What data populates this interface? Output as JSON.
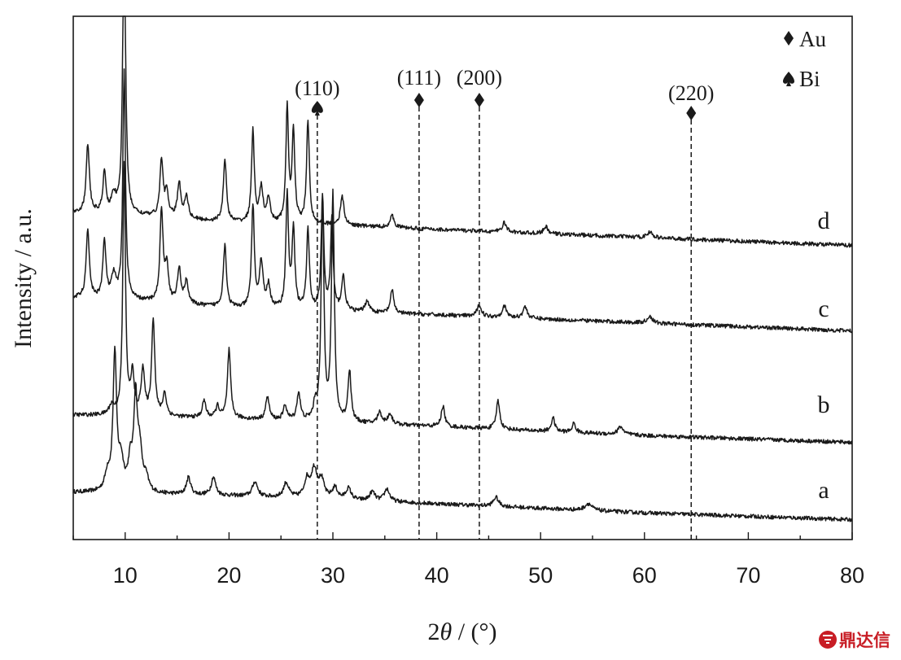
{
  "chart_data": {
    "type": "line",
    "title": "",
    "xlabel_prefix": "2",
    "xlabel_symbol": "θ",
    "xlabel_suffix": " / (°)",
    "ylabel": "Intensity / a.u.",
    "xlim": [
      5,
      80
    ],
    "xticks": [
      10,
      20,
      30,
      40,
      50,
      60,
      70,
      80
    ],
    "yticks_shown": false,
    "grid": false,
    "series": [
      {
        "name": "a",
        "baseline": [
          [
            5,
            0.0
          ],
          [
            20,
            -0.3
          ],
          [
            40,
            -1.0
          ],
          [
            60,
            -1.8
          ],
          [
            80,
            -2.4
          ]
        ],
        "peaks": [
          [
            8.3,
            1.5,
            0.3
          ],
          [
            9.0,
            12.0,
            0.2
          ],
          [
            9.6,
            2.5,
            0.3
          ],
          [
            10.5,
            2.5,
            0.25
          ],
          [
            11.0,
            8.0,
            0.2
          ],
          [
            11.4,
            3.5,
            0.25
          ],
          [
            12.0,
            1.2,
            0.3
          ],
          [
            16.1,
            1.5,
            0.25
          ],
          [
            18.5,
            1.6,
            0.25
          ],
          [
            22.5,
            1.3,
            0.3
          ],
          [
            25.5,
            1.3,
            0.3
          ],
          [
            27.5,
            1.5,
            0.3
          ],
          [
            28.2,
            2.5,
            0.35
          ],
          [
            28.9,
            1.5,
            0.3
          ],
          [
            30.2,
            1.0,
            0.3
          ],
          [
            31.5,
            1.0,
            0.3
          ],
          [
            33.8,
            0.8,
            0.3
          ],
          [
            35.2,
            1.1,
            0.3
          ],
          [
            45.7,
            0.8,
            0.3
          ],
          [
            54.6,
            0.6,
            0.4
          ]
        ]
      },
      {
        "name": "b",
        "baseline": [
          [
            5,
            0.0
          ],
          [
            20,
            -0.3
          ],
          [
            40,
            -1.0
          ],
          [
            60,
            -1.8
          ],
          [
            80,
            -2.4
          ]
        ],
        "peaks": [
          [
            8.7,
            0.8,
            0.3
          ],
          [
            9.9,
            22.0,
            0.15
          ],
          [
            10.7,
            3.5,
            0.2
          ],
          [
            11.7,
            4.0,
            0.2
          ],
          [
            12.7,
            8.5,
            0.18
          ],
          [
            13.8,
            2.0,
            0.2
          ],
          [
            17.6,
            1.5,
            0.2
          ],
          [
            18.9,
            1.0,
            0.2
          ],
          [
            20.0,
            6.0,
            0.18
          ],
          [
            23.7,
            2.0,
            0.2
          ],
          [
            25.4,
            1.3,
            0.2
          ],
          [
            26.7,
            2.4,
            0.2
          ],
          [
            28.3,
            1.3,
            0.2
          ],
          [
            29.0,
            19.0,
            0.16
          ],
          [
            30.0,
            20.0,
            0.16
          ],
          [
            31.6,
            4.5,
            0.18
          ],
          [
            34.5,
            1.0,
            0.25
          ],
          [
            35.5,
            0.9,
            0.25
          ],
          [
            40.6,
            1.8,
            0.2
          ],
          [
            45.9,
            2.5,
            0.2
          ],
          [
            51.2,
            1.2,
            0.2
          ],
          [
            53.2,
            0.8,
            0.2
          ],
          [
            57.7,
            0.7,
            0.3
          ]
        ]
      },
      {
        "name": "c",
        "baseline": [
          [
            5,
            0.5
          ],
          [
            10,
            0.3
          ],
          [
            20,
            -0.4
          ],
          [
            30,
            -0.7
          ],
          [
            40,
            -1.0
          ],
          [
            60,
            -1.7
          ],
          [
            80,
            -2.4
          ]
        ],
        "peaks": [
          [
            6.4,
            6.0,
            0.18
          ],
          [
            8.0,
            5.0,
            0.18
          ],
          [
            8.9,
            2.0,
            0.25
          ],
          [
            9.9,
            20.0,
            0.15
          ],
          [
            13.5,
            8.0,
            0.18
          ],
          [
            14.0,
            3.0,
            0.2
          ],
          [
            15.2,
            3.0,
            0.2
          ],
          [
            15.9,
            2.0,
            0.2
          ],
          [
            19.6,
            5.5,
            0.18
          ],
          [
            22.3,
            9.0,
            0.16
          ],
          [
            23.1,
            4.0,
            0.2
          ],
          [
            23.8,
            2.0,
            0.2
          ],
          [
            25.6,
            10.0,
            0.15
          ],
          [
            26.2,
            7.0,
            0.16
          ],
          [
            27.6,
            7.0,
            0.16
          ],
          [
            29.0,
            10.0,
            0.15
          ],
          [
            29.9,
            8.0,
            0.15
          ],
          [
            31.0,
            3.0,
            0.2
          ],
          [
            33.3,
            1.0,
            0.25
          ],
          [
            35.7,
            2.0,
            0.2
          ],
          [
            44.1,
            1.0,
            0.25
          ],
          [
            46.5,
            1.0,
            0.25
          ],
          [
            48.5,
            1.0,
            0.25
          ],
          [
            60.5,
            0.6,
            0.3
          ]
        ]
      },
      {
        "name": "d",
        "baseline": [
          [
            5,
            0.5
          ],
          [
            10,
            0.3
          ],
          [
            20,
            -0.4
          ],
          [
            30,
            -0.6
          ],
          [
            40,
            -1.0
          ],
          [
            60,
            -1.7
          ],
          [
            80,
            -2.4
          ]
        ],
        "peaks": [
          [
            6.4,
            6.0,
            0.18
          ],
          [
            8.0,
            3.5,
            0.18
          ],
          [
            8.9,
            1.5,
            0.25
          ],
          [
            9.9,
            28.0,
            0.15
          ],
          [
            13.5,
            5.0,
            0.18
          ],
          [
            14.0,
            2.0,
            0.2
          ],
          [
            15.2,
            3.0,
            0.2
          ],
          [
            15.9,
            2.0,
            0.2
          ],
          [
            19.6,
            5.5,
            0.18
          ],
          [
            22.3,
            8.0,
            0.16
          ],
          [
            23.1,
            3.0,
            0.2
          ],
          [
            23.8,
            2.0,
            0.2
          ],
          [
            25.6,
            10.0,
            0.15
          ],
          [
            26.2,
            8.0,
            0.16
          ],
          [
            27.6,
            9.0,
            0.16
          ],
          [
            30.9,
            2.5,
            0.2
          ],
          [
            35.7,
            1.0,
            0.25
          ],
          [
            46.5,
            0.8,
            0.25
          ],
          [
            50.5,
            0.6,
            0.25
          ],
          [
            60.5,
            0.5,
            0.3
          ]
        ]
      }
    ],
    "reference_lines": [
      {
        "label": "(110)",
        "x": 28.5,
        "marker": "spade",
        "phase": "Bi"
      },
      {
        "label": "(111)",
        "x": 38.3,
        "marker": "diamond",
        "phase": "Au"
      },
      {
        "label": "(200)",
        "x": 44.1,
        "marker": "diamond",
        "phase": "Au"
      },
      {
        "label": "(220)",
        "x": 64.5,
        "marker": "diamond",
        "phase": "Au"
      }
    ],
    "legend": {
      "placement": "top-right",
      "entries": [
        {
          "marker": "diamond",
          "label": "Au"
        },
        {
          "marker": "spade",
          "label": "Bi"
        }
      ]
    }
  },
  "watermark": {
    "text": "鼎达信",
    "color": "#c81d25"
  }
}
